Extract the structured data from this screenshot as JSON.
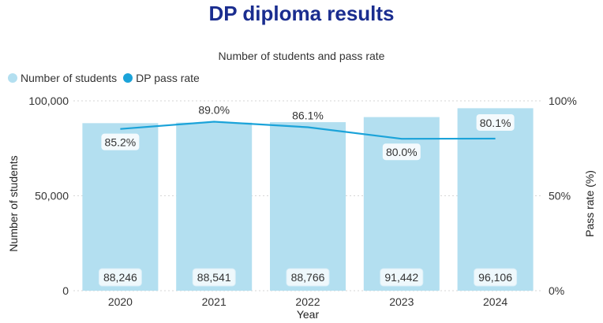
{
  "header": {
    "title": "DP diploma results"
  },
  "chart_data": {
    "type": "bar",
    "title": "Number of students and pass rate",
    "categories": [
      "2020",
      "2021",
      "2022",
      "2023",
      "2024"
    ],
    "series": [
      {
        "name": "Number of students",
        "type": "bar",
        "axis": "left",
        "values": [
          88246,
          88541,
          88766,
          91442,
          96106
        ],
        "labels": [
          "88,246",
          "88,541",
          "88,766",
          "91,442",
          "96,106"
        ],
        "color": "#b3dff0"
      },
      {
        "name": "DP pass rate",
        "type": "line",
        "axis": "right",
        "values": [
          85.2,
          89.0,
          86.1,
          80.0,
          80.1
        ],
        "labels": [
          "85.2%",
          "89.0%",
          "86.1%",
          "80.0%",
          "80.1%"
        ],
        "color": "#1ba3d9"
      }
    ],
    "xlabel": "Year",
    "ylabel": "Number of students",
    "y2label": "Pass rate (%)",
    "ylim": [
      0,
      100000
    ],
    "y2lim": [
      0,
      100
    ],
    "yticks": [
      "0",
      "50,000",
      "100,000"
    ],
    "y2ticks": [
      "0%",
      "50%",
      "100%"
    ],
    "grid": true,
    "legend": "top-left"
  }
}
